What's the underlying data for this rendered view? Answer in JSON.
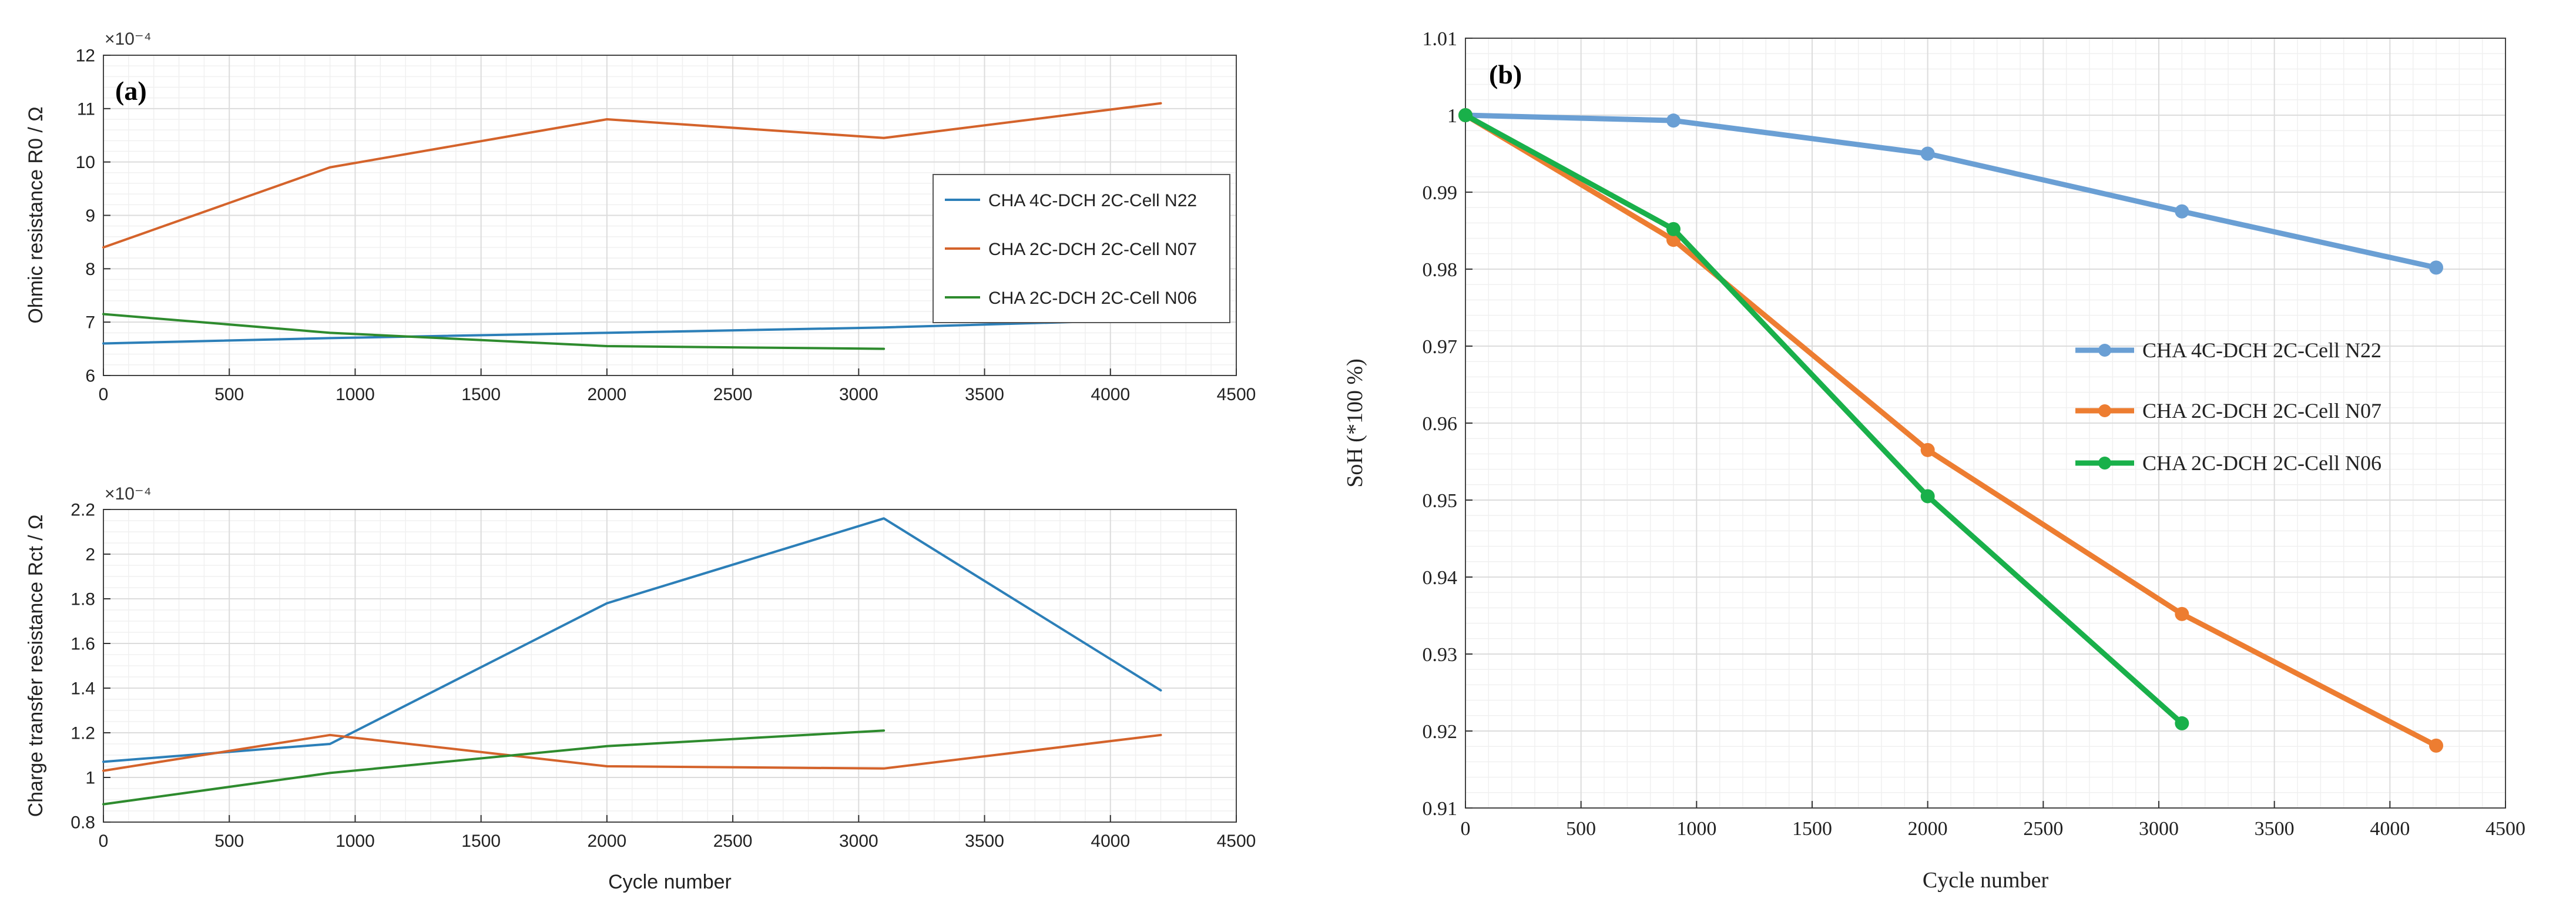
{
  "colors": {
    "a_blue": "#2c7fb8",
    "a_orange": "#d4632b",
    "a_green": "#2e8b2e",
    "b_blue": "#6a9fd4",
    "b_orange": "#ed7d31",
    "b_green": "#19b04a",
    "grid_major": "#dcdcdc",
    "grid_minor": "#f0f0f0",
    "axis": "#333333"
  },
  "chart_data": [
    {
      "id": "a-top",
      "type": "line",
      "panel_label": "(a)",
      "exponent_label": "×10⁻⁴",
      "xlabel": "",
      "ylabel": "Ohmic resistance R0 / Ω",
      "xlim": [
        0,
        4500
      ],
      "ylim": [
        6,
        12
      ],
      "xticks": [
        0,
        500,
        1000,
        1500,
        2000,
        2500,
        3000,
        3500,
        4000,
        4500
      ],
      "yticks": [
        6,
        7,
        8,
        9,
        10,
        11,
        12
      ],
      "grid": "major+minor",
      "legend_position": "right",
      "series": [
        {
          "name": "CHA 4C-DCH 2C-Cell N22",
          "color_key": "a_blue",
          "x": [
            0,
            900,
            2000,
            3100,
            4200
          ],
          "values": [
            6.6,
            6.7,
            6.8,
            6.9,
            7.05
          ]
        },
        {
          "name": "CHA 2C-DCH 2C-Cell N07",
          "color_key": "a_orange",
          "x": [
            0,
            900,
            2000,
            3100,
            4200
          ],
          "values": [
            8.4,
            9.9,
            10.8,
            10.45,
            11.1
          ]
        },
        {
          "name": "CHA 2C-DCH 2C-Cell N06",
          "color_key": "a_green",
          "x": [
            0,
            900,
            2000,
            3100
          ],
          "values": [
            7.15,
            6.8,
            6.55,
            6.5
          ]
        }
      ]
    },
    {
      "id": "a-bottom",
      "type": "line",
      "exponent_label": "×10⁻⁴",
      "xlabel": "Cycle number",
      "ylabel": "Charge transfer resistance Rct / Ω",
      "xlim": [
        0,
        4500
      ],
      "ylim": [
        0.8,
        2.2
      ],
      "xticks": [
        0,
        500,
        1000,
        1500,
        2000,
        2500,
        3000,
        3500,
        4000,
        4500
      ],
      "yticks": [
        0.8,
        1,
        1.2,
        1.4,
        1.6,
        1.8,
        2,
        2.2
      ],
      "grid": "major+minor",
      "series": [
        {
          "name": "CHA 4C-DCH 2C-Cell N22",
          "color_key": "a_blue",
          "x": [
            0,
            900,
            2000,
            3100,
            4200
          ],
          "values": [
            1.07,
            1.15,
            1.78,
            2.16,
            1.39
          ]
        },
        {
          "name": "CHA 2C-DCH 2C-Cell N07",
          "color_key": "a_orange",
          "x": [
            0,
            900,
            2000,
            3100,
            4200
          ],
          "values": [
            1.03,
            1.19,
            1.05,
            1.04,
            1.19
          ]
        },
        {
          "name": "CHA 2C-DCH 2C-Cell N06",
          "color_key": "a_green",
          "x": [
            0,
            900,
            2000,
            3100
          ],
          "values": [
            0.88,
            1.02,
            1.14,
            1.21
          ]
        }
      ]
    },
    {
      "id": "b",
      "type": "line",
      "panel_label": "(b)",
      "xlabel": "Cycle number",
      "ylabel": "SoH (*100 %)",
      "xlim": [
        0,
        4500
      ],
      "ylim": [
        0.91,
        1.01
      ],
      "xticks": [
        0,
        500,
        1000,
        1500,
        2000,
        2500,
        3000,
        3500,
        4000,
        4500
      ],
      "yticks": [
        0.91,
        0.92,
        0.93,
        0.94,
        0.95,
        0.96,
        0.97,
        0.98,
        0.99,
        1,
        1.01
      ],
      "grid": "major+minor",
      "legend_position": "right",
      "markers": true,
      "series": [
        {
          "name": "CHA 4C-DCH 2C-Cell N22",
          "color_key": "b_blue",
          "x": [
            0,
            900,
            2000,
            3100,
            4200
          ],
          "values": [
            1.0,
            0.9993,
            0.995,
            0.9875,
            0.9802
          ]
        },
        {
          "name": "CHA 2C-DCH 2C-Cell N07",
          "color_key": "b_orange",
          "x": [
            0,
            900,
            2000,
            3100,
            4200
          ],
          "values": [
            1.0,
            0.9838,
            0.9565,
            0.9352,
            0.9181
          ]
        },
        {
          "name": "CHA 2C-DCH 2C-Cell N06",
          "color_key": "b_green",
          "x": [
            0,
            900,
            2000,
            3100
          ],
          "values": [
            1.0,
            0.9852,
            0.9505,
            0.921
          ]
        }
      ]
    }
  ]
}
